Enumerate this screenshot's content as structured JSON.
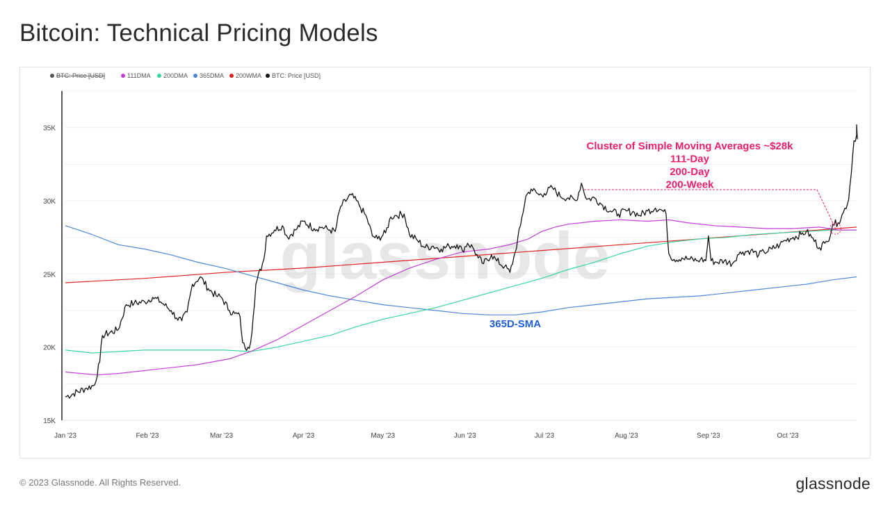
{
  "title": "Bitcoin: Technical Pricing Models",
  "footer": {
    "copyright": "© 2023 Glassnode. All Rights Reserved.",
    "logo": "glassnode"
  },
  "watermark": "glassnode",
  "chart_data": {
    "type": "line",
    "title": "Bitcoin: Technical Pricing Models",
    "xlabel": "",
    "ylabel": "",
    "x_range": [
      "2023-01-01",
      "2023-10-25"
    ],
    "ylim": [
      15000,
      37500
    ],
    "y_ticks": [
      15000,
      20000,
      25000,
      30000,
      35000
    ],
    "y_tick_labels": [
      "15K",
      "20K",
      "25K",
      "30K",
      "35K"
    ],
    "x_tick_labels": [
      "Jan '23",
      "Feb '23",
      "Mar '23",
      "Apr '23",
      "May '23",
      "Jun '23",
      "Jul '23",
      "Aug '23",
      "Sep '23",
      "Oct '23"
    ],
    "x_tick_days": [
      0,
      31,
      59,
      90,
      120,
      151,
      181,
      212,
      243,
      273
    ],
    "grid": true,
    "legend": [
      {
        "name": "BTC: Price [USD]",
        "color": "#555555",
        "disabled": true
      },
      {
        "name": "111DMA",
        "color": "#c23fd6"
      },
      {
        "name": "200DMA",
        "color": "#3ad6a0"
      },
      {
        "name": "365DMA",
        "color": "#4d86d6"
      },
      {
        "name": "200WMA",
        "color": "#e02020"
      },
      {
        "name": "BTC: Price [USD]",
        "color": "#111111"
      }
    ],
    "series": [
      {
        "name": "BTC: Price [USD]",
        "color": "#111111",
        "points": [
          [
            0,
            16600
          ],
          [
            8,
            17200
          ],
          [
            11,
            17400
          ],
          [
            13,
            19000
          ],
          [
            14,
            20800
          ],
          [
            20,
            21200
          ],
          [
            23,
            22900
          ],
          [
            26,
            23000
          ],
          [
            30,
            23100
          ],
          [
            33,
            23400
          ],
          [
            36,
            23100
          ],
          [
            40,
            22500
          ],
          [
            42,
            22000
          ],
          [
            44,
            21800
          ],
          [
            46,
            22400
          ],
          [
            48,
            24300
          ],
          [
            51,
            24800
          ],
          [
            54,
            24000
          ],
          [
            57,
            23500
          ],
          [
            59,
            23400
          ],
          [
            62,
            22500
          ],
          [
            64,
            22300
          ],
          [
            66,
            22100
          ],
          [
            67,
            20300
          ],
          [
            68,
            19900
          ],
          [
            69,
            20000
          ],
          [
            70,
            20300
          ],
          [
            71,
            22100
          ],
          [
            72,
            24300
          ],
          [
            75,
            26000
          ],
          [
            76,
            27600
          ],
          [
            79,
            28000
          ],
          [
            82,
            28300
          ],
          [
            84,
            27500
          ],
          [
            87,
            28000
          ],
          [
            90,
            28600
          ],
          [
            94,
            28100
          ],
          [
            97,
            28200
          ],
          [
            100,
            28000
          ],
          [
            102,
            27900
          ],
          [
            104,
            29600
          ],
          [
            108,
            30400
          ],
          [
            111,
            29700
          ],
          [
            114,
            28800
          ],
          [
            116,
            27600
          ],
          [
            118,
            27400
          ],
          [
            121,
            27800
          ],
          [
            123,
            28900
          ],
          [
            125,
            29000
          ],
          [
            128,
            29100
          ],
          [
            130,
            27700
          ],
          [
            133,
            27300
          ],
          [
            136,
            26800
          ],
          [
            139,
            26900
          ],
          [
            142,
            26700
          ],
          [
            145,
            26900
          ],
          [
            148,
            27000
          ],
          [
            150,
            26600
          ],
          [
            152,
            27100
          ],
          [
            154,
            26800
          ],
          [
            156,
            26100
          ],
          [
            158,
            25700
          ],
          [
            161,
            26300
          ],
          [
            163,
            25900
          ],
          [
            166,
            25500
          ],
          [
            168,
            25100
          ],
          [
            170,
            26500
          ],
          [
            172,
            28300
          ],
          [
            174,
            30300
          ],
          [
            176,
            30800
          ],
          [
            179,
            30400
          ],
          [
            181,
            30500
          ],
          [
            184,
            30900
          ],
          [
            187,
            30300
          ],
          [
            190,
            30200
          ],
          [
            193,
            30000
          ],
          [
            195,
            31200
          ],
          [
            197,
            30100
          ],
          [
            200,
            30200
          ],
          [
            203,
            29700
          ],
          [
            206,
            29300
          ],
          [
            209,
            29100
          ],
          [
            212,
            29300
          ],
          [
            215,
            29200
          ],
          [
            217,
            29000
          ],
          [
            220,
            29300
          ],
          [
            223,
            29500
          ],
          [
            225,
            29400
          ],
          [
            227,
            29100
          ],
          [
            228,
            26400
          ],
          [
            230,
            26000
          ],
          [
            233,
            26100
          ],
          [
            236,
            26000
          ],
          [
            239,
            25900
          ],
          [
            240,
            26000
          ],
          [
            242,
            25900
          ],
          [
            243,
            27600
          ],
          [
            244,
            25900
          ],
          [
            246,
            25800
          ],
          [
            249,
            25900
          ],
          [
            252,
            25700
          ],
          [
            254,
            26300
          ],
          [
            256,
            26500
          ],
          [
            259,
            26600
          ],
          [
            262,
            26300
          ],
          [
            264,
            26500
          ],
          [
            267,
            26700
          ],
          [
            270,
            27000
          ],
          [
            272,
            27300
          ],
          [
            275,
            27500
          ],
          [
            278,
            27700
          ],
          [
            280,
            27900
          ],
          [
            282,
            27500
          ],
          [
            285,
            26800
          ],
          [
            287,
            27100
          ],
          [
            288,
            27200
          ],
          [
            290,
            28400
          ],
          [
            292,
            28500
          ],
          [
            294,
            29200
          ],
          [
            296,
            30100
          ],
          [
            298,
            34100
          ],
          [
            299,
            34500
          ]
        ]
      },
      {
        "name": "111DMA",
        "color": "#c23fd6",
        "points": [
          [
            0,
            18300
          ],
          [
            12,
            18100
          ],
          [
            20,
            18200
          ],
          [
            35,
            18500
          ],
          [
            50,
            18800
          ],
          [
            62,
            19200
          ],
          [
            70,
            19700
          ],
          [
            80,
            20500
          ],
          [
            90,
            21500
          ],
          [
            100,
            22500
          ],
          [
            110,
            23500
          ],
          [
            120,
            24600
          ],
          [
            130,
            25400
          ],
          [
            140,
            26000
          ],
          [
            150,
            26500
          ],
          [
            160,
            26700
          ],
          [
            168,
            27000
          ],
          [
            175,
            27400
          ],
          [
            180,
            27900
          ],
          [
            185,
            28200
          ],
          [
            190,
            28400
          ],
          [
            195,
            28500
          ],
          [
            200,
            28600
          ],
          [
            210,
            28700
          ],
          [
            220,
            28600
          ],
          [
            228,
            28700
          ],
          [
            235,
            28500
          ],
          [
            245,
            28300
          ],
          [
            255,
            28200
          ],
          [
            265,
            28100
          ],
          [
            275,
            28100
          ],
          [
            285,
            28200
          ],
          [
            292,
            28000
          ],
          [
            299,
            28000
          ]
        ]
      },
      {
        "name": "200DMA",
        "color": "#3ad6a0",
        "points": [
          [
            0,
            19800
          ],
          [
            10,
            19600
          ],
          [
            20,
            19700
          ],
          [
            30,
            19800
          ],
          [
            40,
            19800
          ],
          [
            50,
            19800
          ],
          [
            60,
            19800
          ],
          [
            70,
            19700
          ],
          [
            80,
            20000
          ],
          [
            90,
            20400
          ],
          [
            100,
            20800
          ],
          [
            110,
            21400
          ],
          [
            120,
            21900
          ],
          [
            130,
            22300
          ],
          [
            140,
            22700
          ],
          [
            150,
            23200
          ],
          [
            160,
            23700
          ],
          [
            170,
            24200
          ],
          [
            180,
            24700
          ],
          [
            190,
            25300
          ],
          [
            200,
            25800
          ],
          [
            210,
            26400
          ],
          [
            220,
            26900
          ],
          [
            230,
            27200
          ],
          [
            240,
            27400
          ],
          [
            250,
            27500
          ],
          [
            260,
            27700
          ],
          [
            270,
            27800
          ],
          [
            280,
            27900
          ],
          [
            290,
            28000
          ],
          [
            299,
            28000
          ]
        ]
      },
      {
        "name": "365DMA",
        "color": "#4d86d6",
        "points": [
          [
            0,
            28300
          ],
          [
            10,
            27700
          ],
          [
            20,
            27000
          ],
          [
            30,
            26700
          ],
          [
            40,
            26300
          ],
          [
            50,
            25800
          ],
          [
            60,
            25400
          ],
          [
            70,
            24900
          ],
          [
            80,
            24400
          ],
          [
            90,
            23900
          ],
          [
            100,
            23500
          ],
          [
            110,
            23200
          ],
          [
            120,
            22900
          ],
          [
            130,
            22700
          ],
          [
            140,
            22500
          ],
          [
            150,
            22300
          ],
          [
            160,
            22200
          ],
          [
            170,
            22200
          ],
          [
            180,
            22400
          ],
          [
            190,
            22700
          ],
          [
            200,
            22900
          ],
          [
            210,
            23100
          ],
          [
            220,
            23300
          ],
          [
            230,
            23400
          ],
          [
            240,
            23500
          ],
          [
            250,
            23700
          ],
          [
            260,
            23900
          ],
          [
            270,
            24100
          ],
          [
            280,
            24300
          ],
          [
            290,
            24600
          ],
          [
            299,
            24800
          ]
        ]
      },
      {
        "name": "200WMA",
        "color": "#e02020",
        "points": [
          [
            0,
            24400
          ],
          [
            30,
            24700
          ],
          [
            60,
            25100
          ],
          [
            90,
            25400
          ],
          [
            120,
            25800
          ],
          [
            150,
            26200
          ],
          [
            180,
            26600
          ],
          [
            210,
            27000
          ],
          [
            240,
            27400
          ],
          [
            270,
            27800
          ],
          [
            299,
            28200
          ]
        ]
      }
    ],
    "annotations": [
      {
        "lines": [
          "Cluster of Simple Moving Averages ~$28k",
          "111-Day",
          "200-Day",
          "200-Week"
        ],
        "color": "#ea1f6e",
        "target_day": 291,
        "target_value": 28100,
        "anchor_day": 196
      },
      {
        "text": "365D-SMA",
        "color": "#1f5fd2",
        "anchor_day": 170,
        "anchor_value": 21500
      }
    ]
  }
}
